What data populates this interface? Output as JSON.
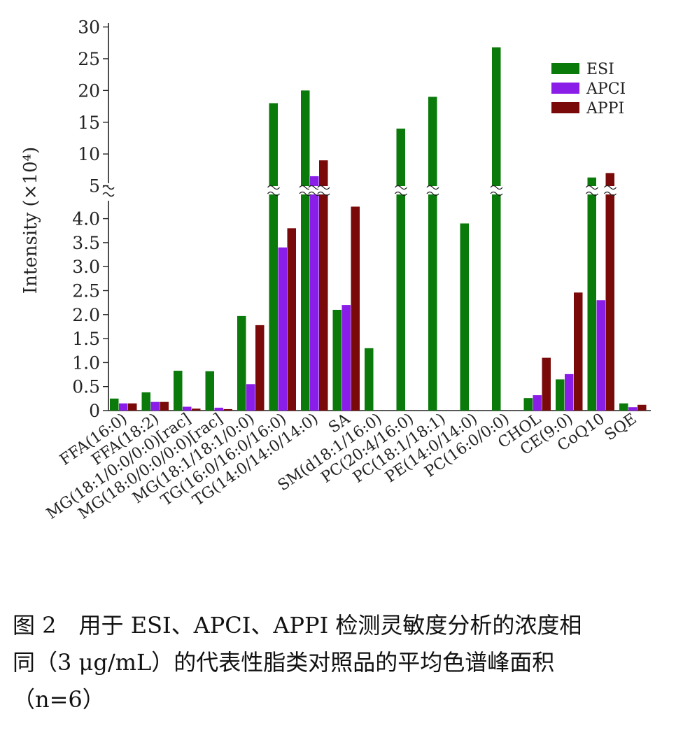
{
  "chart_data": {
    "type": "bar",
    "ylabel": "Intensity (×10⁴)",
    "ylim_lower": [
      0,
      4.4
    ],
    "ylim_upper": [
      4.4,
      30
    ],
    "yticks_lower": [
      "0",
      "0.5",
      "1.0",
      "1.5",
      "2.0",
      "2.5",
      "3.0",
      "3.5",
      "4.0"
    ],
    "yticks_upper": [
      "5",
      "10",
      "15",
      "20",
      "25",
      "30"
    ],
    "legend_position": "top-right",
    "categories": [
      "FFA(16:0)",
      "FFA(18:2)",
      "MG(18:1/0:0/0:0)[rac]",
      "MG(18:0/0:0/0:0)[rac]",
      "MG(18:1/18:1/0:0)",
      "TG(16:0/16:0/16:0)",
      "TG(14:0/14:0/14:0)",
      "SA",
      "SM(d18:1/16:0)",
      "PC(20:4/16:0)",
      "PC(18:1/18:1)",
      "PE(14:0/14:0)",
      "PC(16:0/0:0)",
      "CHOL",
      "CE(9:0)",
      "CoQ10",
      "SQE"
    ],
    "series": [
      {
        "name": "ESI",
        "color": "#0a7a0a",
        "values": [
          0.25,
          0.38,
          0.83,
          0.82,
          1.97,
          18.0,
          20.0,
          2.1,
          1.3,
          14.0,
          19.0,
          3.9,
          26.8,
          0.26,
          0.65,
          6.3,
          0.15
        ]
      },
      {
        "name": "APCI",
        "color": "#8a1ee8",
        "values": [
          0.15,
          0.18,
          0.08,
          0.06,
          0.55,
          3.4,
          6.5,
          2.2,
          0,
          0,
          0,
          0,
          0,
          0.32,
          0.76,
          2.3,
          0.07
        ]
      },
      {
        "name": "APPI",
        "color": "#7a0a0a",
        "values": [
          0.15,
          0.18,
          0.04,
          0.03,
          1.78,
          3.8,
          9.0,
          4.25,
          0,
          0,
          0,
          0,
          0,
          1.1,
          2.46,
          7.0,
          0.12
        ]
      }
    ]
  },
  "caption": {
    "line1": "图 2　用于 ESI、APCI、APPI 检测灵敏度分析的浓度相",
    "line2": "同（3 μg/mL）的代表性脂类对照品的平均色谱峰面积",
    "line3": "（n=6）"
  }
}
